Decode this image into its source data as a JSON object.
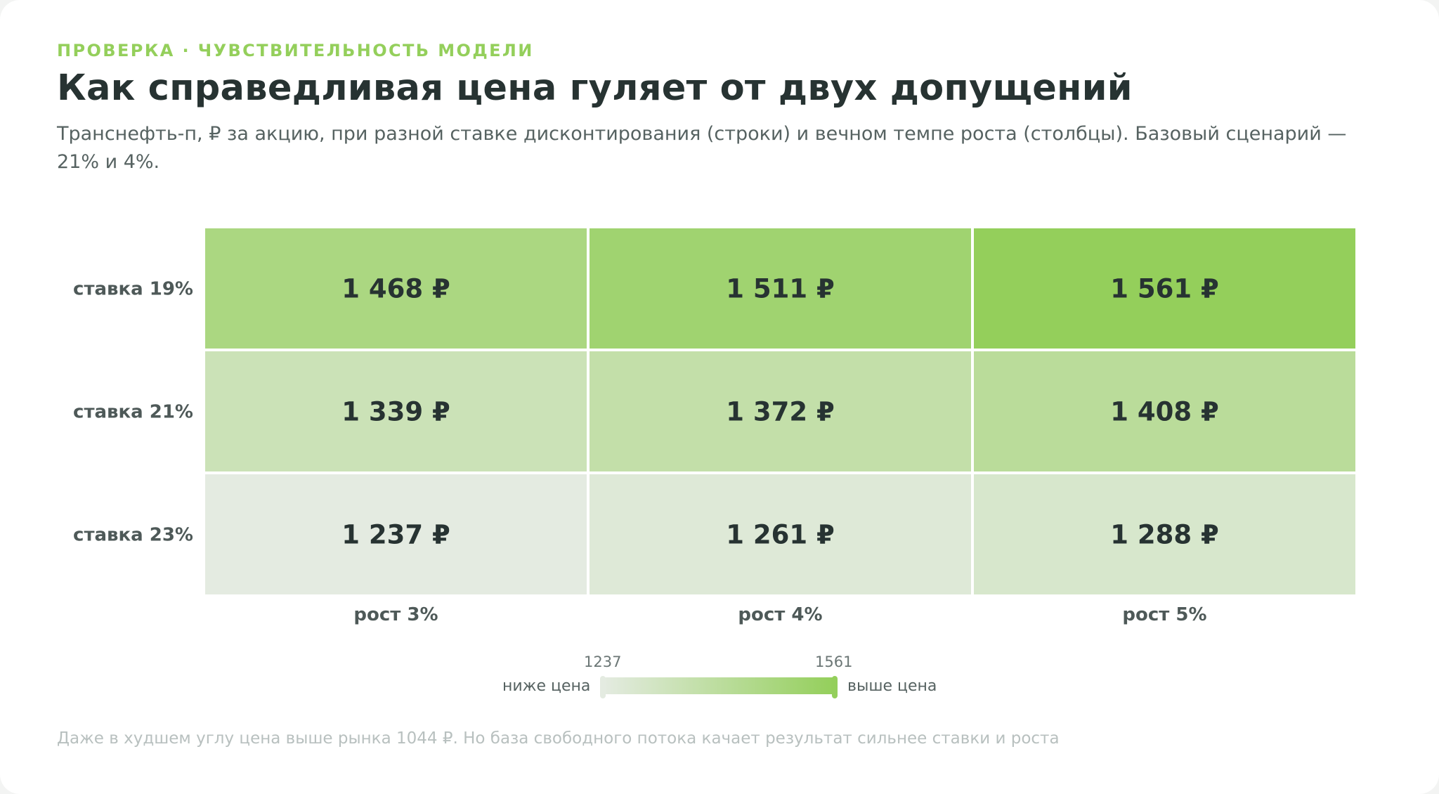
{
  "header": {
    "eyebrow": "ПРОВЕРКА · ЧУВСТВИТЕЛЬНОСТЬ МОДЕЛИ",
    "title": "Как справедливая цена гуляет от двух допущений",
    "subtitle": "Транснефть-п, ₽ за акцию, при разной ставке дисконтирования (строки) и вечном темпе роста (столбцы). Базовый сценарий — 21% и 4%."
  },
  "chart_data": {
    "type": "heatmap",
    "rows": [
      "ставка 19%",
      "ставка 21%",
      "ставка 23%"
    ],
    "columns": [
      "рост 3%",
      "рост 4%",
      "рост 5%"
    ],
    "values": [
      [
        1468,
        1511,
        1561
      ],
      [
        1339,
        1372,
        1408
      ],
      [
        1237,
        1261,
        1288
      ]
    ],
    "value_labels": [
      [
        "1 468 ₽",
        "1 511 ₽",
        "1 561 ₽"
      ],
      [
        "1 339 ₽",
        "1 372 ₽",
        "1 408 ₽"
      ],
      [
        "1 237 ₽",
        "1 261 ₽",
        "1 288 ₽"
      ]
    ],
    "color_scale": {
      "min": 1237,
      "max": 1561,
      "min_color": "#e4ebe1",
      "max_color": "#94cf5b"
    }
  },
  "legend": {
    "min_label": "1237",
    "max_label": "1561",
    "low_text": "ниже цена",
    "high_text": "выше цена"
  },
  "footnote": "Даже в худшем углу цена выше рынка 1044 ₽. Но база свободного потока качает результат сильнее ставки и роста",
  "colors": {
    "accent": "#94cf5b",
    "text_dark": "#273332",
    "text_muted": "#566261",
    "footnote": "#b8c0bf"
  }
}
